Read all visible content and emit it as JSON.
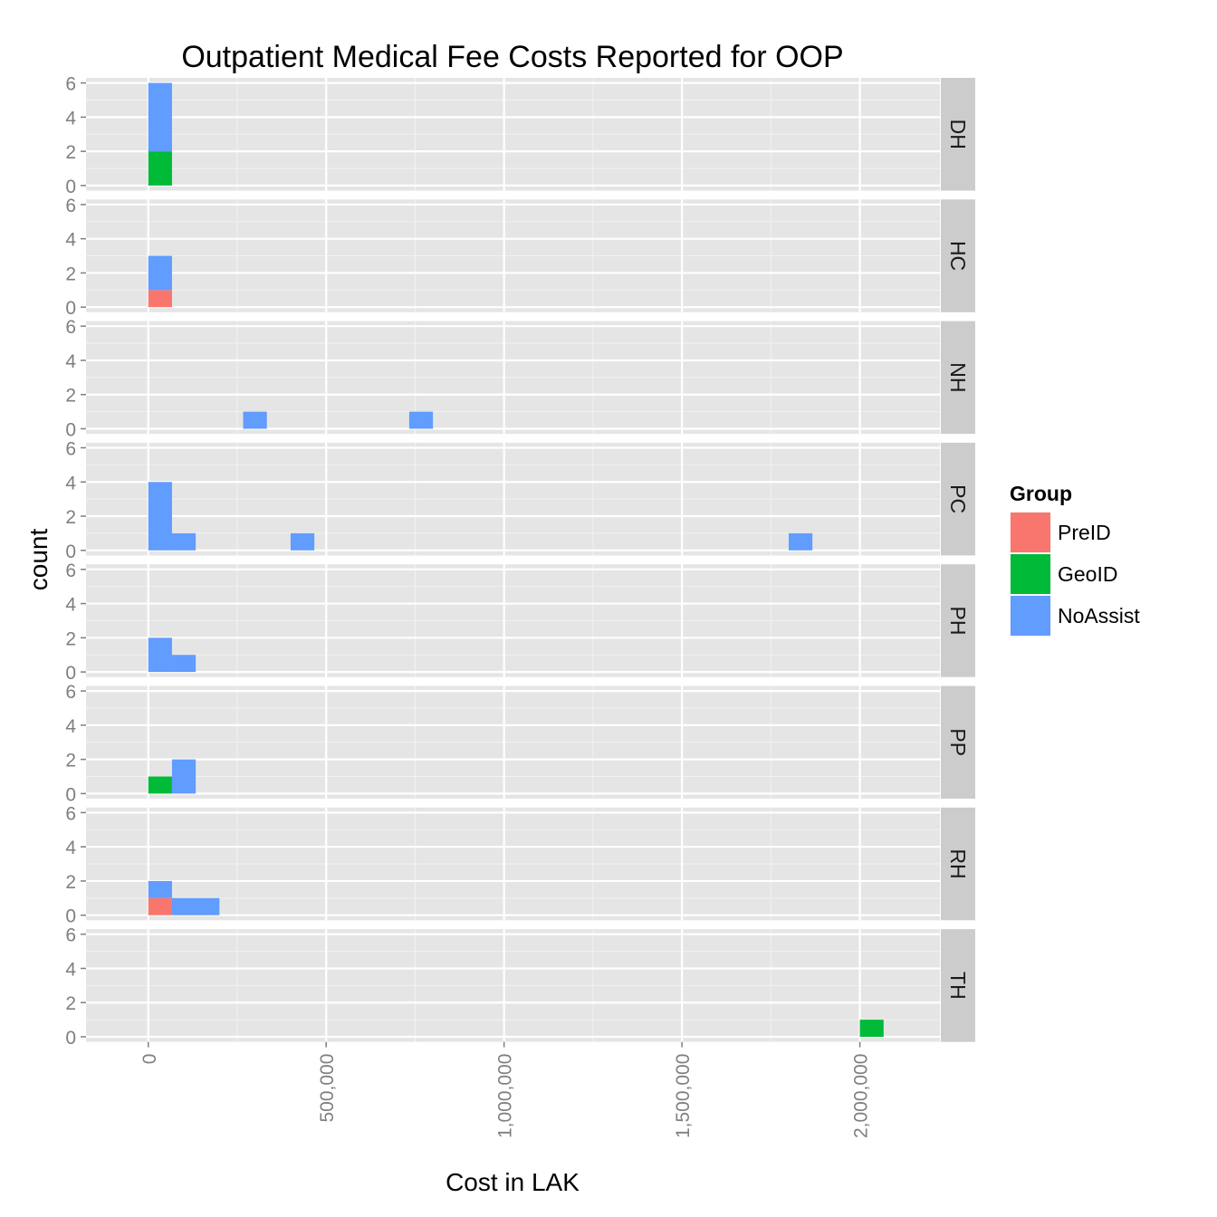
{
  "chart_data": {
    "type": "bar",
    "subtype": "stacked histogram, faceted by row",
    "title": "Outpatient Medical Fee Costs Reported for OOP",
    "xlabel": "Cost in LAK",
    "ylabel": "count",
    "xlim": [
      -175000,
      2225000
    ],
    "ylim": [
      0,
      6
    ],
    "bin_width": 66667,
    "x_ticks": [
      0,
      500000,
      1000000,
      1500000,
      2000000
    ],
    "x_tick_labels": [
      "0",
      "500,000",
      "1,000,000",
      "1,500,000",
      "2,000,000"
    ],
    "y_ticks": [
      0,
      2,
      4,
      6
    ],
    "y_tick_labels": [
      "0",
      "2",
      "4",
      "6"
    ],
    "grid": true,
    "legend": {
      "title": "Group",
      "position": "right",
      "entries": [
        {
          "name": "PreID",
          "color": "#F8766D"
        },
        {
          "name": "GeoID",
          "color": "#00BA38"
        },
        {
          "name": "NoAssist",
          "color": "#619CFF"
        }
      ]
    },
    "panels": [
      {
        "label": "DH",
        "bars": [
          {
            "x0": 0,
            "x1": 66667,
            "stack": [
              {
                "group": "GeoID",
                "count": 2
              },
              {
                "group": "NoAssist",
                "count": 4
              }
            ]
          }
        ]
      },
      {
        "label": "HC",
        "bars": [
          {
            "x0": 0,
            "x1": 66667,
            "stack": [
              {
                "group": "PreID",
                "count": 1
              },
              {
                "group": "NoAssist",
                "count": 2
              }
            ]
          }
        ]
      },
      {
        "label": "NH",
        "bars": [
          {
            "x0": 266667,
            "x1": 333333,
            "stack": [
              {
                "group": "NoAssist",
                "count": 1
              }
            ]
          },
          {
            "x0": 733333,
            "x1": 800000,
            "stack": [
              {
                "group": "NoAssist",
                "count": 1
              }
            ]
          }
        ]
      },
      {
        "label": "PC",
        "bars": [
          {
            "x0": 0,
            "x1": 66667,
            "stack": [
              {
                "group": "NoAssist",
                "count": 4
              }
            ]
          },
          {
            "x0": 66667,
            "x1": 133333,
            "stack": [
              {
                "group": "NoAssist",
                "count": 1
              }
            ]
          },
          {
            "x0": 400000,
            "x1": 466667,
            "stack": [
              {
                "group": "NoAssist",
                "count": 1
              }
            ]
          },
          {
            "x0": 1800000,
            "x1": 1866667,
            "stack": [
              {
                "group": "NoAssist",
                "count": 1
              }
            ]
          }
        ]
      },
      {
        "label": "PH",
        "bars": [
          {
            "x0": 0,
            "x1": 66667,
            "stack": [
              {
                "group": "NoAssist",
                "count": 2
              }
            ]
          },
          {
            "x0": 66667,
            "x1": 133333,
            "stack": [
              {
                "group": "NoAssist",
                "count": 1
              }
            ]
          }
        ]
      },
      {
        "label": "PP",
        "bars": [
          {
            "x0": 0,
            "x1": 66667,
            "stack": [
              {
                "group": "GeoID",
                "count": 1
              }
            ]
          },
          {
            "x0": 66667,
            "x1": 133333,
            "stack": [
              {
                "group": "NoAssist",
                "count": 2
              }
            ]
          }
        ]
      },
      {
        "label": "RH",
        "bars": [
          {
            "x0": 0,
            "x1": 66667,
            "stack": [
              {
                "group": "PreID",
                "count": 1
              },
              {
                "group": "NoAssist",
                "count": 1
              }
            ]
          },
          {
            "x0": 66667,
            "x1": 200000,
            "stack": [
              {
                "group": "NoAssist",
                "count": 1
              }
            ]
          }
        ]
      },
      {
        "label": "TH",
        "bars": [
          {
            "x0": 2000000,
            "x1": 2066667,
            "stack": [
              {
                "group": "GeoID",
                "count": 1
              }
            ]
          }
        ]
      }
    ]
  }
}
